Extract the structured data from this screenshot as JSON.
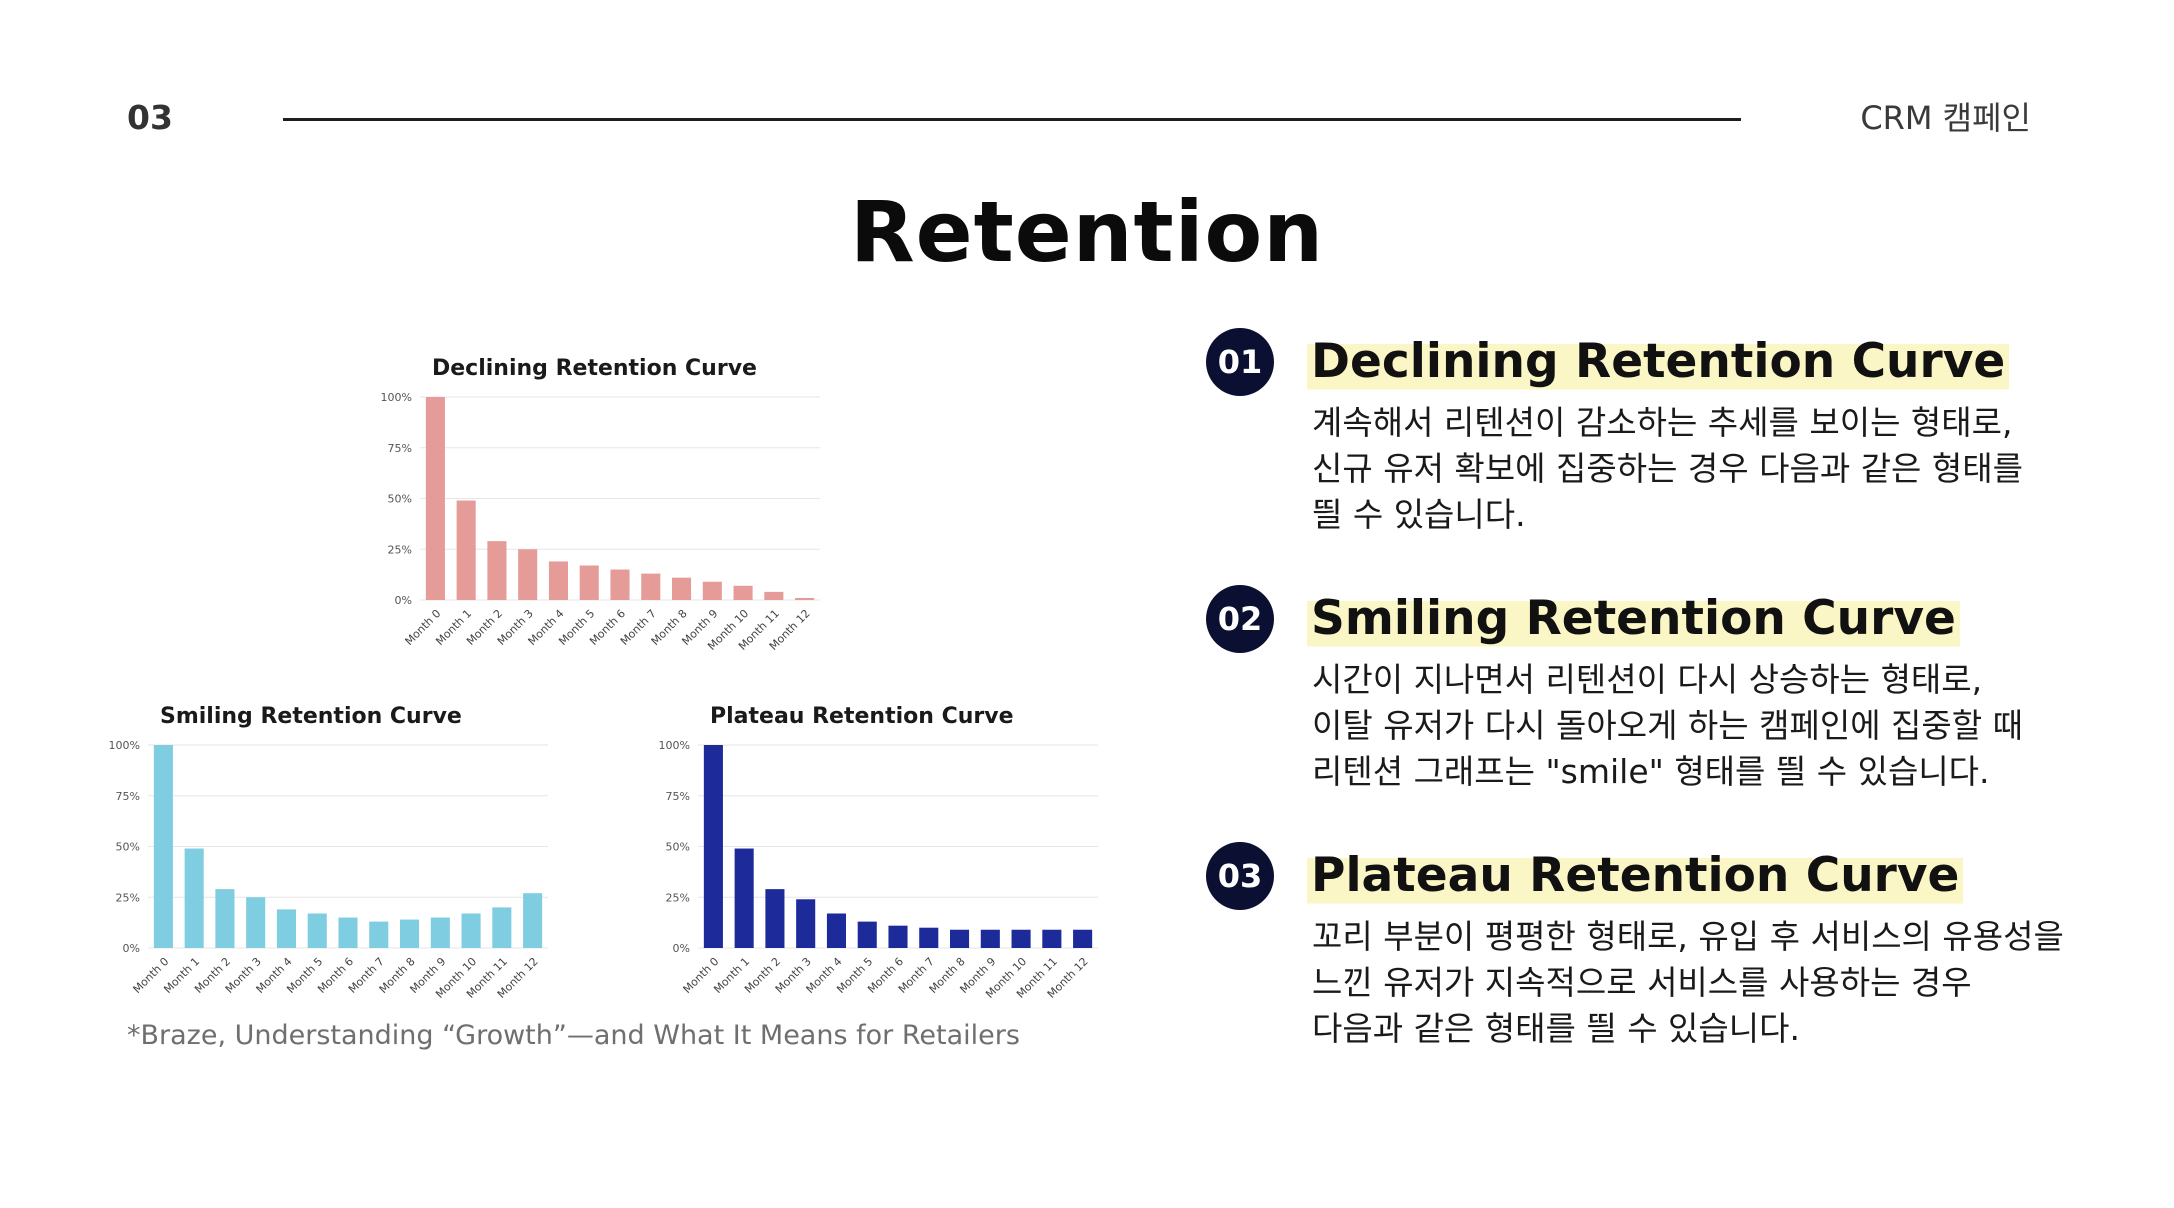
{
  "header": {
    "page_number": "03",
    "label": "CRM 캠페인"
  },
  "title": "Retention",
  "source_note": "*Braze, Understanding “Growth”—and What It Means for Retailers",
  "chart_data": [
    {
      "id": "declining",
      "type": "bar",
      "title": "Declining Retention Curve",
      "categories": [
        "Month 0",
        "Month 1",
        "Month 2",
        "Month 3",
        "Month 4",
        "Month 5",
        "Month 6",
        "Month 7",
        "Month 8",
        "Month 9",
        "Month 10",
        "Month 11",
        "Month 12"
      ],
      "values": [
        100,
        49,
        29,
        25,
        19,
        17,
        15,
        13,
        11,
        9,
        7,
        4,
        1
      ],
      "y_ticks": [
        "0%",
        "25%",
        "50%",
        "75%",
        "100%"
      ],
      "ylim": [
        0,
        100
      ],
      "color": "#e59b98",
      "grid": true
    },
    {
      "id": "smiling",
      "type": "bar",
      "title": "Smiling Retention Curve",
      "categories": [
        "Month 0",
        "Month 1",
        "Month 2",
        "Month 3",
        "Month 4",
        "Month 5",
        "Month 6",
        "Month 7",
        "Month 8",
        "Month 9",
        "Month 10",
        "Month 11",
        "Month 12"
      ],
      "values": [
        100,
        49,
        29,
        25,
        19,
        17,
        15,
        13,
        14,
        15,
        17,
        20,
        27
      ],
      "y_ticks": [
        "0%",
        "25%",
        "50%",
        "75%",
        "100%"
      ],
      "ylim": [
        0,
        100
      ],
      "color": "#7fcde0",
      "grid": true
    },
    {
      "id": "plateau",
      "type": "bar",
      "title": "Plateau Retention Curve",
      "categories": [
        "Month 0",
        "Month 1",
        "Month 2",
        "Month 3",
        "Month 4",
        "Month 5",
        "Month 6",
        "Month 7",
        "Month 8",
        "Month 9",
        "Month 10",
        "Month 11",
        "Month 12"
      ],
      "values": [
        100,
        49,
        29,
        24,
        17,
        13,
        11,
        10,
        9,
        9,
        9,
        9,
        9
      ],
      "y_ticks": [
        "0%",
        "25%",
        "50%",
        "75%",
        "100%"
      ],
      "ylim": [
        0,
        100
      ],
      "color": "#1c2a9a",
      "grid": true
    }
  ],
  "sections": [
    {
      "number": "01",
      "title": "Declining Retention Curve",
      "lines": [
        "계속해서 리텐션이 감소하는 추세를 보이는 형태로,",
        "신규 유저 확보에 집중하는 경우 다음과 같은 형태를",
        "띌 수 있습니다."
      ]
    },
    {
      "number": "02",
      "title": "Smiling Retention Curve",
      "lines": [
        "시간이 지나면서 리텐션이 다시 상승하는 형태로,",
        "이탈 유저가 다시 돌아오게 하는 캠페인에 집중할 때",
        "리텐션 그래프는 \"smile\" 형태를 띌 수 있습니다."
      ]
    },
    {
      "number": "03",
      "title": "Plateau Retention Curve",
      "lines": [
        "꼬리 부분이 평평한 형태로, 유입 후 서비스의 유용성을",
        "느낀 유저가 지속적으로 서비스를 사용하는 경우",
        "다음과 같은 형태를 띌 수 있습니다."
      ]
    }
  ]
}
